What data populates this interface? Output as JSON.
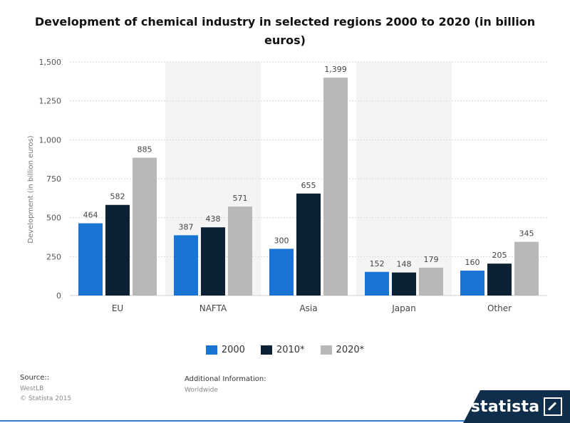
{
  "header": {
    "title": "Development of chemical industry in selected regions 2000 to 2020 (in billion euros)"
  },
  "chart_data": {
    "type": "bar",
    "categories": [
      "EU",
      "NAFTA",
      "Asia",
      "Japan",
      "Other"
    ],
    "series": [
      {
        "name": "2000",
        "color": "#1a74d6",
        "values": [
          464,
          387,
          300,
          152,
          160
        ]
      },
      {
        "name": "2010*",
        "color": "#0d2135",
        "values": [
          582,
          438,
          655,
          148,
          205
        ]
      },
      {
        "name": "2020*",
        "color": "#b8b8b8",
        "values": [
          885,
          571,
          1399,
          179,
          345
        ]
      }
    ],
    "data_labels": [
      [
        "464",
        "582",
        "885"
      ],
      [
        "387",
        "438",
        "571"
      ],
      [
        "300",
        "655",
        "1,399"
      ],
      [
        "152",
        "148",
        "179"
      ],
      [
        "160",
        "205",
        "345"
      ]
    ],
    "ylabel": "Development (in billion euros)",
    "ylim": [
      0,
      1500
    ],
    "yticks": [
      0,
      250,
      500,
      750,
      1000,
      1250,
      1500
    ],
    "ytick_labels": [
      "0",
      "250",
      "500",
      "750",
      "1,000",
      "1,250",
      "1,500"
    ],
    "grid": true,
    "legend_position": "bottom"
  },
  "footer": {
    "source_label": "Source::",
    "source_value": "WestLB",
    "copyright": "© Statista 2015",
    "additional_label": "Additional Information:",
    "additional_value": "Worldwide",
    "brand": "statista"
  }
}
